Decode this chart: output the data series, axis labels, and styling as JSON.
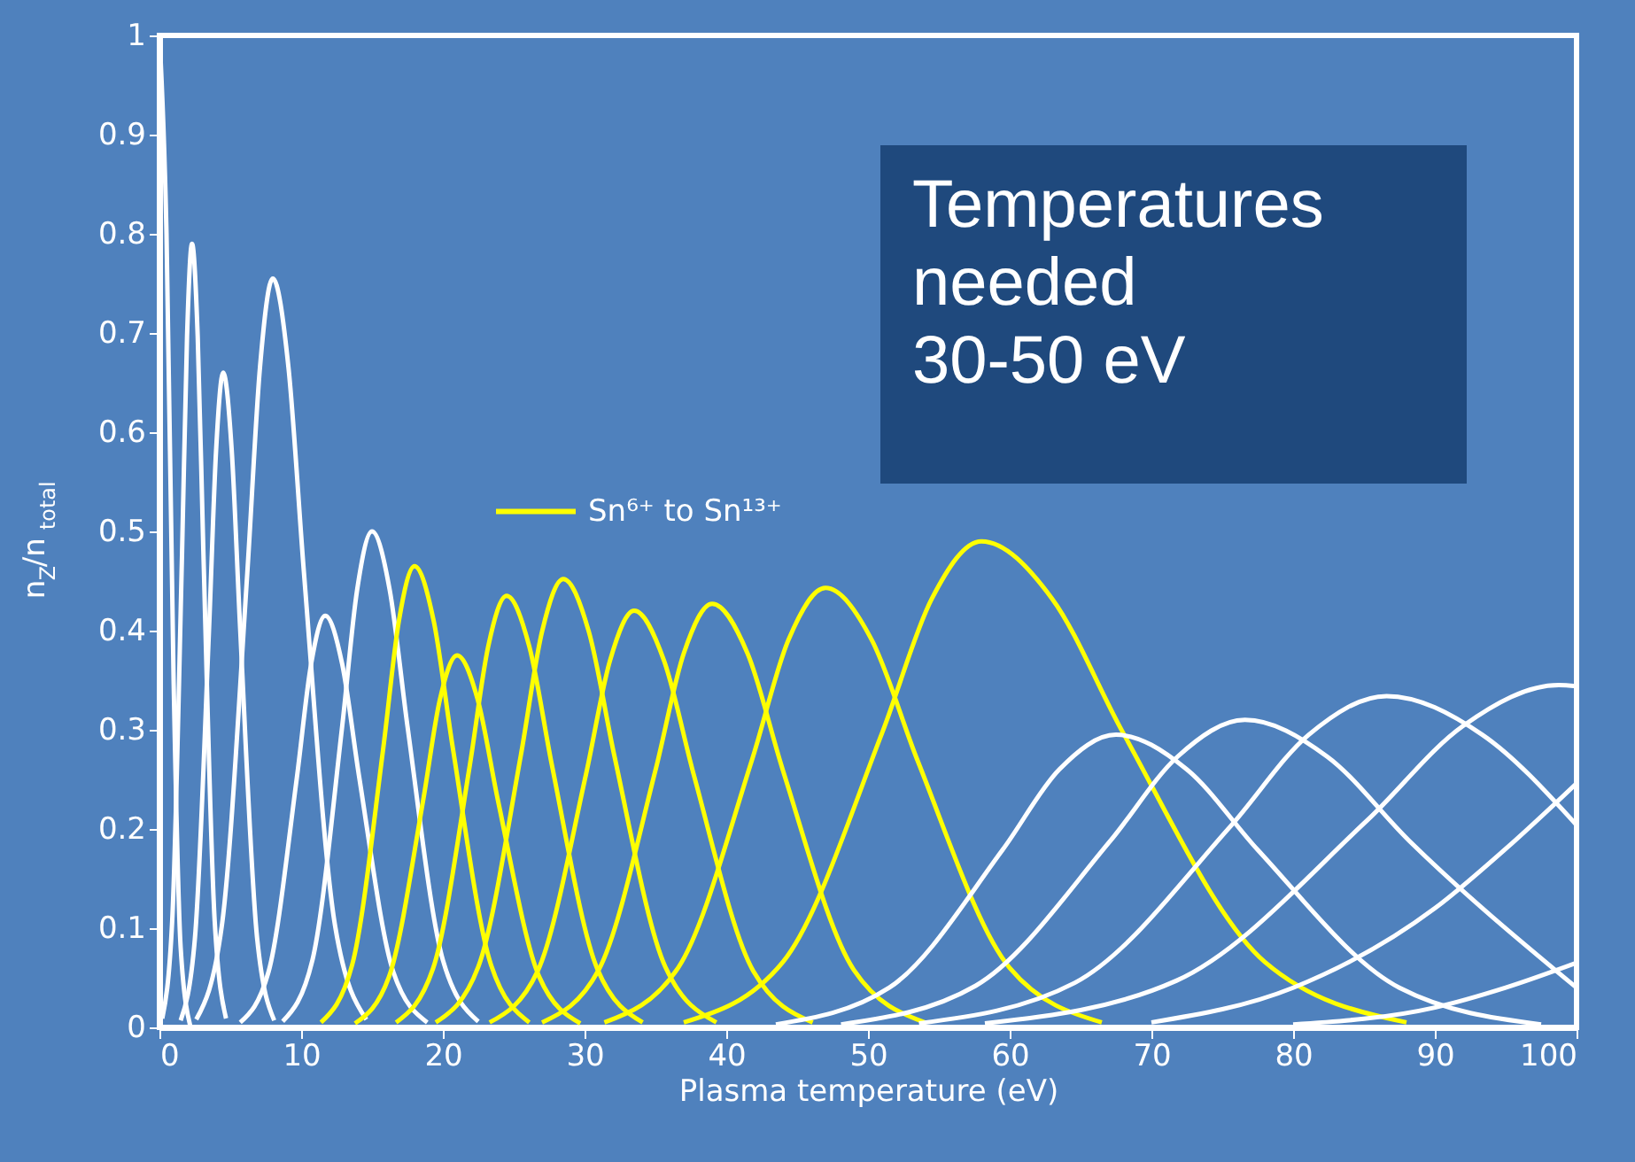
{
  "chart_data": {
    "type": "line",
    "xlabel": "Plasma temperature (eV)",
    "ylabel": "n$_{Z}$/n$_{total}$",
    "xlim": [
      0,
      100
    ],
    "xticks": [
      0,
      10,
      20,
      30,
      40,
      50,
      60,
      70,
      80,
      90,
      100
    ],
    "ylim": [
      0,
      1
    ],
    "yticks": [
      0,
      0.1,
      0.2,
      0.3,
      0.4,
      0.5,
      0.6,
      0.7,
      0.8,
      0.9,
      1
    ],
    "grid": false,
    "legend": "left",
    "marker": "none",
    "line_style": "solid",
    "annotations": [
      "Temperatures\nneeded\n30-50 eV"
    ],
    "series": [
      {
        "color": "#ffffff",
        "x": [
          0,
          0.5,
          1,
          1.5,
          2.2
        ],
        "values": [
          1,
          0.8,
          0.35,
          0.08,
          0
        ]
      },
      {
        "color": "#ffffff",
        "x": [
          0.2,
          0.9,
          1.6,
          1.95,
          2.3,
          2.7,
          3.1,
          3.9,
          4.7
        ],
        "values": [
          0.009,
          0.107,
          0.48,
          0.697,
          0.79,
          0.697,
          0.48,
          0.107,
          0.009
        ]
      },
      {
        "color": "#ffffff",
        "x": [
          1.5,
          2.5,
          3.5,
          4,
          4.5,
          5.1,
          5.7,
          6.9,
          8.1
        ],
        "values": [
          0.007,
          0.089,
          0.401,
          0.582,
          0.66,
          0.582,
          0.401,
          0.089,
          0.007
        ]
      },
      {
        "color": "#ffffff",
        "x": [
          2.6,
          4.4,
          6.2,
          7.1,
          8,
          9.1,
          10.2,
          12.4,
          14.6
        ],
        "values": [
          0.008,
          0.102,
          0.458,
          0.666,
          0.755,
          0.666,
          0.458,
          0.102,
          0.008
        ]
      },
      {
        "color": "#ffffff",
        "x": [
          5.7,
          7.7,
          9.7,
          10.7,
          11.7,
          12.9,
          14.1,
          16.5,
          18.9
        ],
        "values": [
          0.005,
          0.056,
          0.252,
          0.366,
          0.415,
          0.366,
          0.252,
          0.056,
          0.005
        ]
      },
      {
        "color": "#ffffff",
        "x": [
          8.7,
          10.8,
          12.9,
          13.95,
          15,
          16.25,
          17.5,
          20,
          22.5
        ],
        "values": [
          0.006,
          0.068,
          0.304,
          0.441,
          0.5,
          0.441,
          0.304,
          0.068,
          0.006
        ]
      },
      {
        "name": "Sn⁶⁺ to Sn¹³⁺",
        "color": "#ffff00",
        "x": [
          11.4,
          13.6,
          15.8,
          16.9,
          18,
          19.35,
          20.7,
          23.4,
          26.1
        ],
        "values": [
          0.005,
          0.063,
          0.282,
          0.41,
          0.465,
          0.41,
          0.282,
          0.063,
          0.005
        ]
      },
      {
        "color": "#ffff00",
        "x": [
          13.8,
          16.2,
          18.6,
          19.8,
          21,
          22.45,
          23.9,
          26.8,
          29.7
        ],
        "values": [
          0.004,
          0.051,
          0.228,
          0.331,
          0.375,
          0.331,
          0.228,
          0.051,
          0.004
        ]
      },
      {
        "color": "#ffff00",
        "x": [
          16.7,
          19.3,
          21.9,
          23.2,
          24.5,
          26.1,
          27.7,
          30.9,
          34.1
        ],
        "values": [
          0.005,
          0.059,
          0.264,
          0.384,
          0.435,
          0.384,
          0.264,
          0.059,
          0.005
        ]
      },
      {
        "color": "#ffff00",
        "x": [
          19.5,
          22.5,
          25.5,
          27,
          28.5,
          30.3,
          32.1,
          35.7,
          39.3
        ],
        "values": [
          0.005,
          0.061,
          0.274,
          0.399,
          0.452,
          0.399,
          0.274,
          0.061,
          0.005
        ]
      },
      {
        "color": "#ffff00",
        "x": [
          23.3,
          26.7,
          30.1,
          31.8,
          33.5,
          35.6,
          37.7,
          41.9,
          46.1
        ],
        "values": [
          0.005,
          0.057,
          0.255,
          0.37,
          0.42,
          0.37,
          0.255,
          0.057,
          0.005
        ]
      },
      {
        "color": "#ffff00",
        "x": [
          27,
          31,
          35,
          37,
          39,
          41.5,
          44,
          49,
          54
        ],
        "values": [
          0.005,
          0.058,
          0.259,
          0.377,
          0.427,
          0.377,
          0.259,
          0.058,
          0.005
        ]
      },
      {
        "color": "#ffff00",
        "x": [
          31.4,
          36.6,
          41.8,
          44.4,
          47,
          50.25,
          53.5,
          60,
          66.5
        ],
        "values": [
          0.005,
          0.06,
          0.269,
          0.391,
          0.443,
          0.391,
          0.269,
          0.06,
          0.005
        ]
      },
      {
        "color": "#ffff00",
        "x": [
          37,
          44,
          51,
          54.5,
          58,
          63,
          68,
          78,
          88
        ],
        "values": [
          0.005,
          0.066,
          0.297,
          0.432,
          0.49,
          0.432,
          0.297,
          0.066,
          0.005
        ]
      },
      {
        "color": "#ffffff",
        "x": [
          43.5,
          51.5,
          59.5,
          63.5,
          67.5,
          72.5,
          77.5,
          87.5,
          97.5
        ],
        "values": [
          0.003,
          0.04,
          0.179,
          0.26,
          0.295,
          0.26,
          0.179,
          0.04,
          0.003
        ]
      },
      {
        "color": "#ffffff",
        "x": [
          48.1,
          57.6,
          67.1,
          71.85,
          76.6,
          82.4,
          88.2,
          100
        ],
        "values": [
          0.003,
          0.042,
          0.188,
          0.273,
          0.31,
          0.273,
          0.188,
          0.04
        ]
      },
      {
        "color": "#ffffff",
        "x": [
          53.6,
          64.6,
          75.6,
          81.1,
          86.6,
          93.35,
          100
        ],
        "values": [
          0.004,
          0.045,
          0.203,
          0.295,
          0.334,
          0.295,
          0.204
        ]
      },
      {
        "color": "#ffffff",
        "x": [
          58.25,
          71.75,
          85.25,
          92,
          98.75,
          100
        ],
        "values": [
          0.004,
          0.047,
          0.209,
          0.304,
          0.345,
          0.344
        ]
      },
      {
        "color": "#ffffff",
        "x": [
          70,
          80,
          90,
          95,
          100
        ],
        "values": [
          0.005,
          0.04,
          0.12,
          0.18,
          0.246
        ]
      },
      {
        "color": "#ffffff",
        "x": [
          80,
          90,
          95,
          100
        ],
        "values": [
          0.003,
          0.02,
          0.04,
          0.065
        ]
      }
    ]
  }
}
